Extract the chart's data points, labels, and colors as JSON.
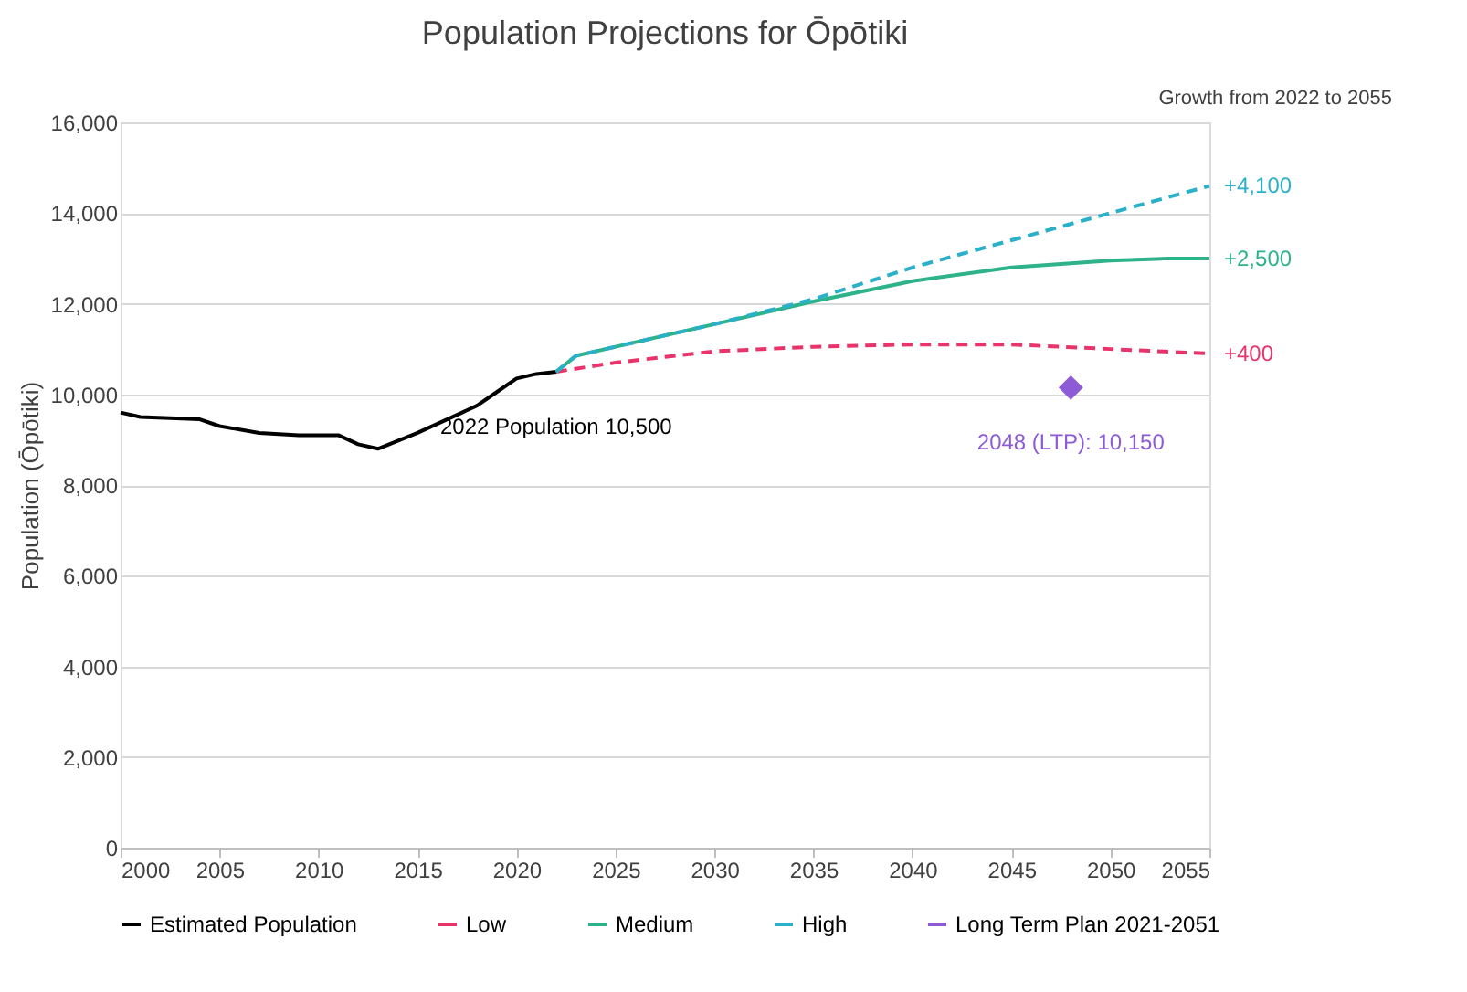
{
  "chart_data": {
    "type": "line",
    "title": "Population Projections for Ōpōtiki",
    "ylabel": "Population (Ōpōtiki)",
    "xlim": [
      2000,
      2055
    ],
    "xticks": [
      2000,
      2005,
      2010,
      2015,
      2020,
      2025,
      2030,
      2035,
      2040,
      2045,
      2050,
      2055
    ],
    "ylim": [
      0,
      16000
    ],
    "yticks": [
      0,
      {
        "value": 2000,
        "label": "2,000"
      },
      {
        "value": 4000,
        "label": "4,000"
      },
      {
        "value": 6000,
        "label": "6,000"
      },
      {
        "value": 8000,
        "label": "8,000"
      },
      {
        "value": 10000,
        "label": "10,000"
      },
      {
        "value": 12000,
        "label": "12,000"
      },
      {
        "value": 14000,
        "label": "14,000"
      },
      {
        "value": 16000,
        "label": "16,000"
      }
    ],
    "grid": "y",
    "legend": "bottom",
    "series": [
      {
        "name": "Estimated Population",
        "color": "#000000",
        "line_style": "solid",
        "x": [
          2000,
          2001,
          2004,
          2005,
          2007,
          2009,
          2011,
          2012,
          2013,
          2015,
          2017,
          2018,
          2019,
          2020,
          2021,
          2022
        ],
        "values": [
          9600,
          9500,
          9450,
          9300,
          9150,
          9100,
          9100,
          8900,
          8800,
          9150,
          9550,
          9750,
          10050,
          10350,
          10450,
          10500
        ]
      },
      {
        "name": "Low",
        "color": "#e8336b",
        "line_style": "dashed",
        "x": [
          2022,
          2025,
          2030,
          2035,
          2040,
          2045,
          2050,
          2055
        ],
        "values": [
          10500,
          10700,
          10950,
          11050,
          11100,
          11100,
          11000,
          10900
        ]
      },
      {
        "name": "Medium",
        "color": "#2eb28a",
        "line_style": "solid",
        "x": [
          2022,
          2023,
          2025,
          2030,
          2035,
          2040,
          2045,
          2050,
          2053,
          2055
        ],
        "values": [
          10500,
          10850,
          11050,
          11550,
          12050,
          12500,
          12800,
          12950,
          13000,
          13000
        ]
      },
      {
        "name": "High",
        "color": "#2ab0c8",
        "line_style": "dashed",
        "x": [
          2022,
          2023,
          2030,
          2035,
          2040,
          2045,
          2050,
          2055
        ],
        "values": [
          10500,
          10850,
          11550,
          12100,
          12800,
          13400,
          14000,
          14600
        ]
      },
      {
        "name": "Long Term Plan 2021-2051",
        "color": "#8e5bd6",
        "type": "scatter",
        "marker": "diamond",
        "x": [
          2048
        ],
        "values": [
          10150
        ]
      }
    ],
    "annotations": [
      "Growth from 2022 to 2055",
      {
        "text": "+4,100",
        "x": 2055,
        "y": 14600
      },
      {
        "text": "+2,500",
        "x": 2055,
        "y": 13000
      },
      {
        "text": "+400",
        "x": 2055,
        "y": 10900
      },
      {
        "text": "2022 Population 10,500",
        "x": 2022,
        "y": 10500
      },
      {
        "text": "2048 (LTP): 10,150",
        "x": 2048,
        "y": 10150
      }
    ]
  }
}
